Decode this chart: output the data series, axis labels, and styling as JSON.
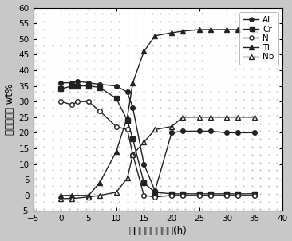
{
  "Al": {
    "x": [
      0,
      2,
      3,
      5,
      7,
      10,
      12,
      13,
      15,
      17,
      20,
      22,
      25,
      27,
      30,
      32,
      35
    ],
    "y": [
      36,
      36,
      36.5,
      36,
      35.5,
      35,
      33,
      28,
      10,
      1.5,
      20,
      20.5,
      20.5,
      20.5,
      20,
      20,
      20
    ]
  },
  "Cr": {
    "x": [
      0,
      2,
      3,
      5,
      7,
      10,
      12,
      13,
      15,
      17,
      20,
      22,
      25,
      27,
      30,
      32,
      35
    ],
    "y": [
      34,
      35,
      35,
      35,
      34.5,
      31,
      24,
      18,
      4,
      1,
      0.5,
      0.5,
      0.5,
      0.5,
      0.5,
      0.5,
      0.5
    ]
  },
  "N": {
    "x": [
      0,
      2,
      3,
      5,
      7,
      10,
      12,
      13,
      15,
      17,
      20,
      22,
      25,
      27,
      30,
      32,
      35
    ],
    "y": [
      30,
      29,
      30,
      30,
      27,
      22,
      21,
      13,
      0,
      -0.5,
      0,
      0,
      0,
      0,
      0,
      0,
      0
    ]
  },
  "Ti": {
    "x": [
      0,
      2,
      5,
      7,
      10,
      12,
      13,
      15,
      17,
      20,
      22,
      25,
      27,
      30,
      32,
      35
    ],
    "y": [
      0,
      0,
      0,
      4,
      14,
      25,
      36,
      46,
      51,
      52,
      52.5,
      53,
      53,
      53,
      53,
      53
    ]
  },
  "Nb": {
    "x": [
      0,
      2,
      5,
      7,
      10,
      12,
      13,
      15,
      17,
      20,
      22,
      25,
      27,
      30,
      32,
      35
    ],
    "y": [
      -1,
      -1,
      -0.5,
      0,
      1,
      5.5,
      13,
      17,
      21,
      22,
      25,
      25,
      25,
      25,
      25,
      25
    ]
  },
  "xlim": [
    -5,
    40
  ],
  "ylim": [
    -5,
    60
  ],
  "xticks": [
    -5,
    0,
    5,
    10,
    15,
    20,
    25,
    30,
    35,
    40
  ],
  "yticks": [
    -5,
    0,
    5,
    10,
    15,
    20,
    25,
    30,
    35,
    40,
    45,
    50,
    55,
    60
  ],
  "xlabel": "由表及里的距离／(h)",
  "ylabel": "元素分布／ wt%",
  "line_color": "#222222",
  "bg_color": "#ffffff",
  "fig_bg": "#c8c8c8",
  "dot_color": "#aaaaaa"
}
